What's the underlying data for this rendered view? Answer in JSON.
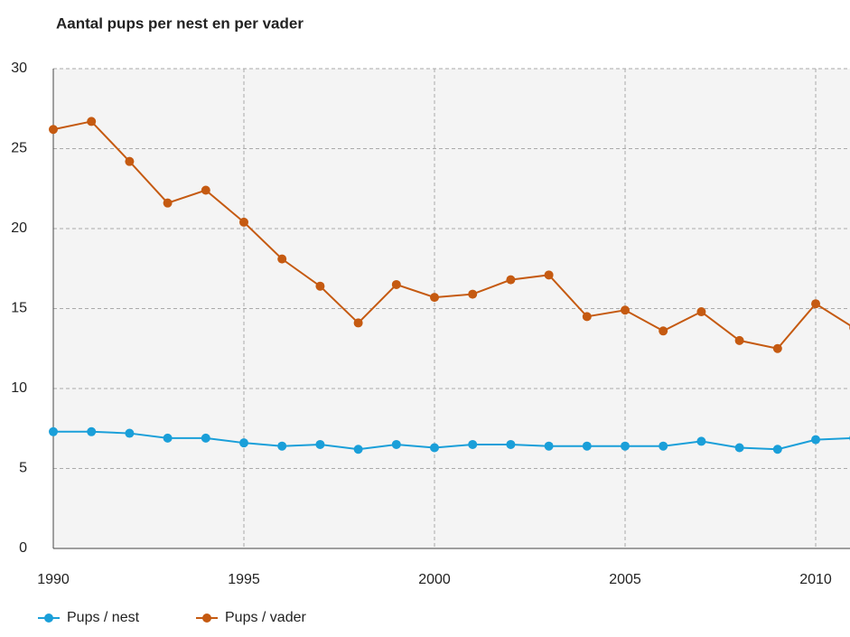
{
  "chart_data": {
    "type": "line",
    "title": "Aantal pups per nest en per vader",
    "x": [
      1990,
      1991,
      1992,
      1993,
      1994,
      1995,
      1996,
      1997,
      1998,
      1999,
      2000,
      2001,
      2002,
      2003,
      2004,
      2005,
      2006,
      2007,
      2008,
      2009,
      2010,
      2011
    ],
    "series": [
      {
        "name": "Pups / nest",
        "color": "#1a9fd9",
        "values": [
          7.3,
          7.3,
          7.2,
          6.9,
          6.9,
          6.6,
          6.4,
          6.5,
          6.2,
          6.5,
          6.3,
          6.5,
          6.5,
          6.4,
          6.4,
          6.4,
          6.4,
          6.7,
          6.3,
          6.2,
          6.8,
          6.9
        ]
      },
      {
        "name": "Pups / vader",
        "color": "#c55a11",
        "values": [
          26.2,
          26.7,
          24.2,
          21.6,
          22.4,
          20.4,
          18.1,
          16.4,
          14.1,
          16.5,
          15.7,
          15.9,
          16.8,
          17.1,
          14.5,
          14.9,
          13.6,
          14.8,
          13.0,
          12.5,
          15.3,
          13.8
        ]
      }
    ],
    "xlim": [
      1990,
      2010.9
    ],
    "xticks": [
      1990,
      1995,
      2000,
      2005,
      2010
    ],
    "ylim": [
      0,
      30
    ],
    "yticks": [
      0,
      5,
      10,
      15,
      20,
      25,
      30
    ],
    "grid": true,
    "legend": "bottom-left"
  }
}
